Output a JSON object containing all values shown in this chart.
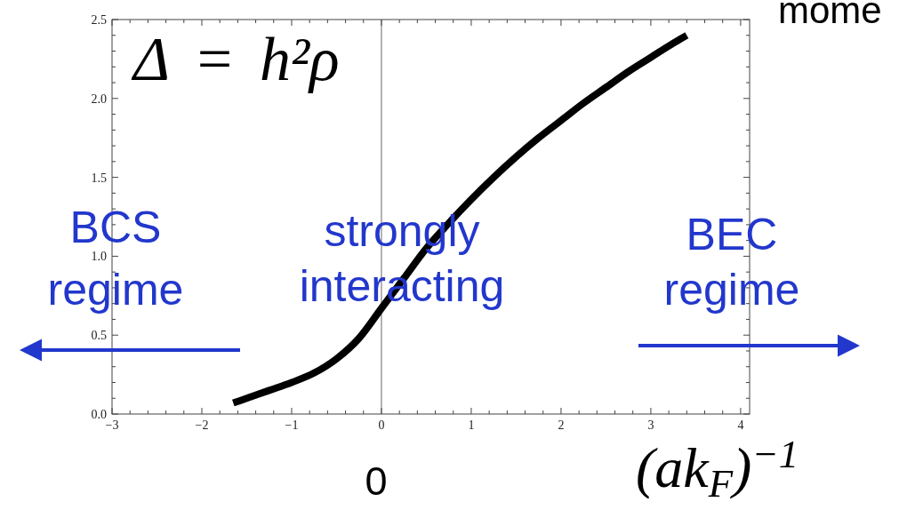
{
  "chart_data": {
    "type": "line",
    "xlabel": "(ak$_{F}$)$^{−1}$",
    "annotations": [
      "Δ = h²ρ",
      "BCS",
      "regime",
      "strongly interacting",
      "BEC regime",
      "0",
      "mome"
    ],
    "series": [
      {
        "color": "#000000",
        "x": [
          -1.65,
          -1.5,
          -1.25,
          -1,
          -0.75,
          -0.5,
          -0.25,
          0,
          0.25,
          0.5,
          0.75,
          1,
          1.25,
          1.5,
          1.75,
          2,
          2.25,
          2.5,
          2.75,
          3,
          3.25,
          3.4
        ],
        "values": [
          0.07,
          0.1,
          0.15,
          0.2,
          0.26,
          0.35,
          0.48,
          0.67,
          0.86,
          1.05,
          1.21,
          1.36,
          1.5,
          1.63,
          1.75,
          1.86,
          1.97,
          2.07,
          2.17,
          2.26,
          2.35,
          2.4
        ]
      }
    ],
    "xlim": [
      -3,
      4.1
    ],
    "ylim": [
      0,
      2.5
    ],
    "xticks": [
      -3,
      {
        "value": -2.8,
        "label": null
      },
      {
        "value": -2.6,
        "label": null
      },
      {
        "value": -2.4,
        "label": null
      },
      {
        "value": -2.2,
        "label": null
      },
      -2,
      {
        "value": -1.8,
        "label": null
      },
      {
        "value": -1.6,
        "label": null
      },
      {
        "value": -1.4,
        "label": null
      },
      {
        "value": -1.2,
        "label": null
      },
      -1,
      {
        "value": -0.8,
        "label": null
      },
      {
        "value": -0.6,
        "label": null
      },
      {
        "value": -0.4,
        "label": null
      },
      {
        "value": -0.2,
        "label": null
      },
      0,
      {
        "value": 0.2,
        "label": null
      },
      {
        "value": 0.4,
        "label": null
      },
      {
        "value": 0.6,
        "label": null
      },
      {
        "value": 0.8,
        "label": null
      },
      1,
      {
        "value": 1.2,
        "label": null
      },
      {
        "value": 1.4,
        "label": null
      },
      {
        "value": 1.6,
        "label": null
      },
      {
        "value": 1.8,
        "label": null
      },
      2,
      {
        "value": 2.2,
        "label": null
      },
      {
        "value": 2.4,
        "label": null
      },
      {
        "value": 2.6,
        "label": null
      },
      {
        "value": 2.8,
        "label": null
      },
      3,
      {
        "value": 3.2,
        "label": null
      },
      {
        "value": 3.4,
        "label": null
      },
      {
        "value": 3.6,
        "label": null
      },
      {
        "value": 3.8,
        "label": null
      },
      4
    ],
    "yticks": [
      {
        "value": 0,
        "label": "0.0"
      },
      {
        "value": 0.1,
        "label": null
      },
      {
        "value": 0.2,
        "label": null
      },
      {
        "value": 0.3,
        "label": null
      },
      {
        "value": 0.4,
        "label": null
      },
      {
        "value": 0.5,
        "label": "0.5"
      },
      {
        "value": 0.6,
        "label": null
      },
      {
        "value": 0.7,
        "label": null
      },
      {
        "value": 0.8,
        "label": null
      },
      {
        "value": 0.9,
        "label": null
      },
      {
        "value": 1,
        "label": "1.0"
      },
      {
        "value": 1.1,
        "label": null
      },
      {
        "value": 1.2,
        "label": null
      },
      {
        "value": 1.3,
        "label": null
      },
      {
        "value": 1.4,
        "label": null
      },
      {
        "value": 1.5,
        "label": "1.5"
      },
      {
        "value": 1.6,
        "label": null
      },
      {
        "value": 1.7,
        "label": null
      },
      {
        "value": 1.8,
        "label": null
      },
      {
        "value": 1.9,
        "label": null
      },
      {
        "value": 2,
        "label": "2.0"
      },
      {
        "value": 2.1,
        "label": null
      },
      {
        "value": 2.2,
        "label": null
      },
      {
        "value": 2.3,
        "label": null
      },
      {
        "value": 2.4,
        "label": null
      },
      {
        "value": 2.5,
        "label": "2.5"
      }
    ],
    "ref_lines": [
      {
        "axis": "x",
        "value": 0,
        "color": "#808080"
      }
    ]
  }
}
